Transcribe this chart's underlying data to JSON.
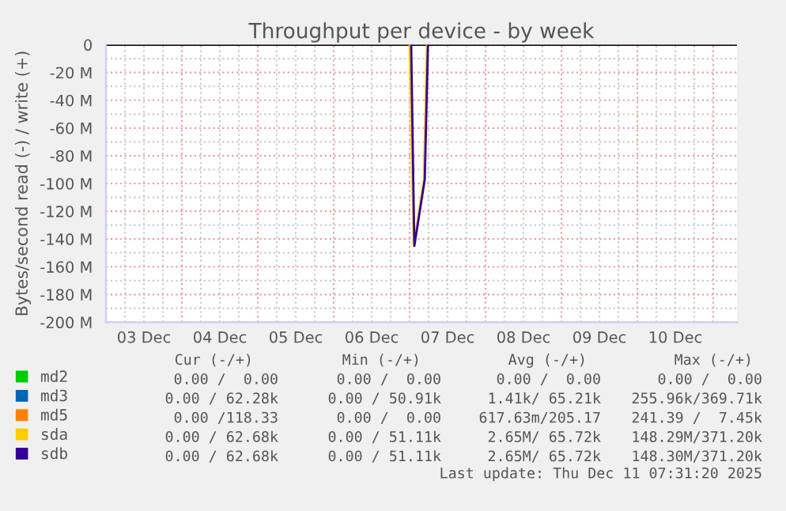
{
  "chart_data": {
    "type": "line",
    "title": "Throughput per device - by week",
    "ylabel": "Bytes/second read (-) / write (+)",
    "xlim": [
      "2025-12-03T00:00",
      "2025-12-11T07:30"
    ],
    "xticks": [
      {
        "value": "2025-12-03T00:00",
        "label": null
      },
      {
        "value": "2025-12-03T12:00",
        "label": "03 Dec"
      },
      {
        "value": "2025-12-04T00:00",
        "label": null
      },
      {
        "value": "2025-12-04T12:00",
        "label": "04 Dec"
      },
      {
        "value": "2025-12-05T00:00",
        "label": null
      },
      {
        "value": "2025-12-05T12:00",
        "label": "05 Dec"
      },
      {
        "value": "2025-12-06T00:00",
        "label": null
      },
      {
        "value": "2025-12-06T12:00",
        "label": "06 Dec"
      },
      {
        "value": "2025-12-07T00:00",
        "label": null
      },
      {
        "value": "2025-12-07T12:00",
        "label": "07 Dec"
      },
      {
        "value": "2025-12-08T00:00",
        "label": null
      },
      {
        "value": "2025-12-08T12:00",
        "label": "08 Dec"
      },
      {
        "value": "2025-12-09T00:00",
        "label": null
      },
      {
        "value": "2025-12-09T12:00",
        "label": "09 Dec"
      },
      {
        "value": "2025-12-10T00:00",
        "label": null
      },
      {
        "value": "2025-12-10T12:00",
        "label": "10 Dec"
      },
      {
        "value": "2025-12-11T00:00",
        "label": null
      }
    ],
    "ylim": [
      -200,
      0
    ],
    "yticks": [
      0,
      {
        "value": -20,
        "label": "-20 M"
      },
      {
        "value": -40,
        "label": "-40 M"
      },
      {
        "value": -60,
        "label": "-60 M"
      },
      {
        "value": -80,
        "label": "-80 M"
      },
      {
        "value": -100,
        "label": "-100 M"
      },
      {
        "value": -120,
        "label": "-120 M"
      },
      {
        "value": -140,
        "label": "-140 M"
      },
      {
        "value": -160,
        "label": "-160 M"
      },
      {
        "value": -180,
        "label": "-180 M"
      },
      {
        "value": -200,
        "label": "-200 M"
      }
    ],
    "grid": true,
    "legend": "bottom left",
    "series": [
      {
        "name": "md2",
        "color": "#00cc00"
      },
      {
        "name": "md3",
        "color": "#0066b3"
      },
      {
        "name": "md5",
        "color": "#ff8000"
      },
      {
        "name": "sda",
        "color": "#ffcc00",
        "x": [
          "2025-12-07T00:00",
          "2025-12-07T01:18",
          "2025-12-07T04:30",
          "2025-12-07T05:30"
        ],
        "values": [
          0,
          -145,
          -97,
          0
        ]
      },
      {
        "name": "sdb",
        "color": "#330099",
        "x": [
          "2025-12-07T00:30",
          "2025-12-07T01:30",
          "2025-12-07T04:48",
          "2025-12-07T05:48"
        ],
        "values": [
          0,
          -145,
          -97,
          0
        ]
      }
    ],
    "annotations": [
      "Cur (-/+)",
      "Min (-/+)",
      "Avg (-/+)",
      "Max (-/+)",
      "0.00 /  0.00",
      "0.00 /  0.00",
      "0.00 /  0.00",
      "0.00 /  0.00",
      "0.00 / 62.28k",
      "0.00 / 50.91k",
      "1.41k/ 65.21k",
      "255.96k/369.71k",
      "0.00 /118.33",
      "0.00 /  0.00",
      "617.63m/205.17",
      "241.39 /  7.45k",
      "0.00 / 62.68k",
      "0.00 / 51.11k",
      "2.65M/ 65.72k",
      "148.29M/371.20k",
      "0.00 / 62.68k",
      "0.00 / 51.11k",
      "2.65M/ 65.72k",
      "148.30M/371.20k",
      "Last update: Thu Dec 11 07:31:20 2025"
    ]
  }
}
